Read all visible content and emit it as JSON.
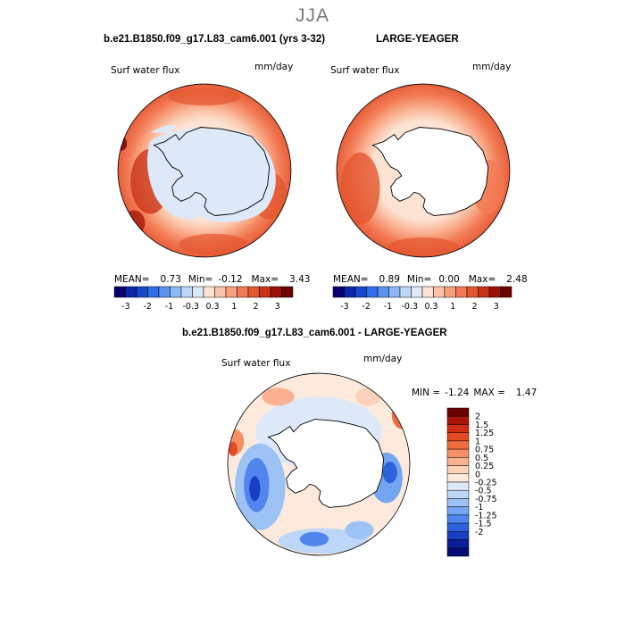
{
  "season": "JJA",
  "panels": [
    {
      "title": "b.e21.B1850.f09_g17.L83_cam6.001 (yrs 3-32)",
      "variable": "Surf water flux",
      "units": "mm/day",
      "stats": {
        "mean_label": "MEAN=",
        "mean": "0.73",
        "min_label": "Min=",
        "min": "-0.12",
        "max_label": "Max=",
        "max": "3.43"
      },
      "colorbar": {
        "colors": [
          "#08006f",
          "#0b24a8",
          "#1648cf",
          "#2d6fe8",
          "#5b93f0",
          "#8db7f6",
          "#bcd7f8",
          "#dde9f9",
          "#fde3d3",
          "#fbc4a9",
          "#f7a07c",
          "#f27a54",
          "#e45630",
          "#cb3318",
          "#9c1006",
          "#6a0000"
        ],
        "labels": [
          "-3",
          "-2",
          "-1",
          "-0.3",
          "0.3",
          "1",
          "2",
          "3"
        ]
      }
    },
    {
      "title": "LARGE-YEAGER",
      "variable": "Surf water flux",
      "units": "mm/day",
      "stats": {
        "mean_label": "MEAN=",
        "mean": "0.89",
        "min_label": "Min=",
        "min": "0.00",
        "max_label": "Max=",
        "max": "2.48"
      },
      "colorbar": {
        "colors": [
          "#08006f",
          "#0b24a8",
          "#1648cf",
          "#2d6fe8",
          "#5b93f0",
          "#8db7f6",
          "#bcd7f8",
          "#dde9f9",
          "#fde3d3",
          "#fbc4a9",
          "#f7a07c",
          "#f27a54",
          "#e45630",
          "#cb3318",
          "#9c1006",
          "#6a0000"
        ],
        "labels": [
          "-3",
          "-2",
          "-1",
          "-0.3",
          "0.3",
          "1",
          "2",
          "3"
        ]
      }
    }
  ],
  "diff_panel": {
    "title": "b.e21.B1850.f09_g17.L83_cam6.001 - LARGE-YEAGER",
    "variable": "Surf water flux",
    "units": "mm/day",
    "stats": {
      "min_label": "MIN =",
      "min": "-1.24",
      "max_label": "MAX =",
      "max": "1.47"
    },
    "colorbar": {
      "colors": [
        "#6a0000",
        "#a81408",
        "#cf2d14",
        "#e44a24",
        "#f06c40",
        "#f79066",
        "#fab293",
        "#fcd2ba",
        "#fdeadd",
        "#dde9f9",
        "#bcd7f8",
        "#9cc2f6",
        "#74a5f2",
        "#4f85ec",
        "#2d62dd",
        "#1a3fc4",
        "#0b1f9a",
        "#050a72"
      ],
      "labels": [
        "2",
        "1.5",
        "1.25",
        "1",
        "0.75",
        "0.5",
        "0.25",
        "0",
        "-0.25",
        "-0.5",
        "-0.75",
        "-1",
        "-1.25",
        "-1.5",
        "-2"
      ]
    }
  }
}
